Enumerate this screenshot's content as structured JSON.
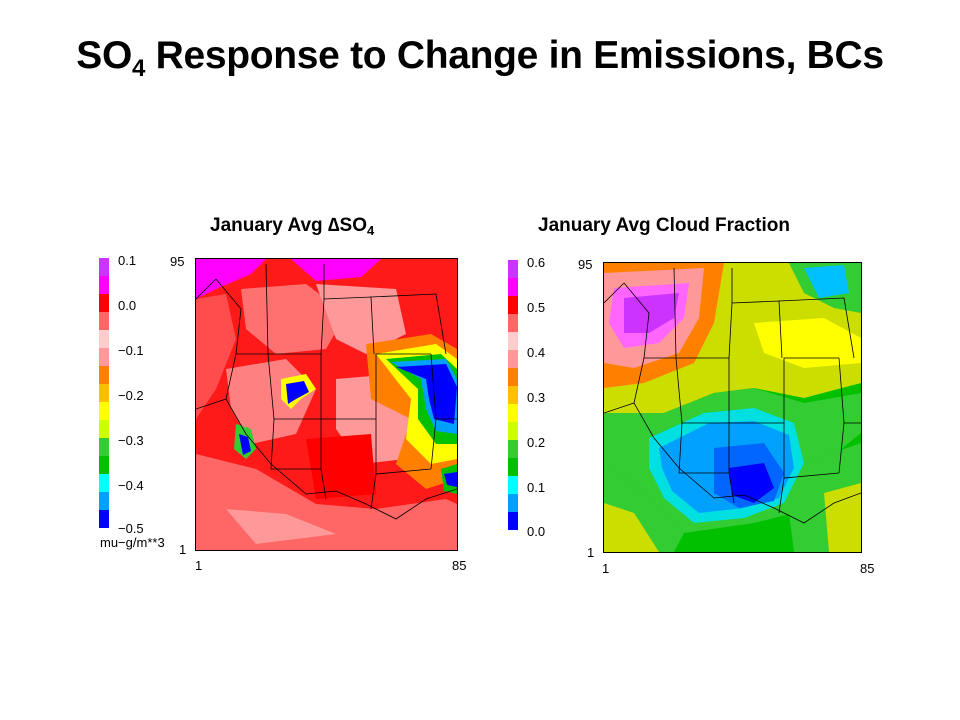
{
  "title": {
    "main": "SO",
    "sub": "4",
    "rest": " Response to Change in Emissions, BCs"
  },
  "chart_data": [
    {
      "type": "heatmap",
      "title_prefix": "January Avg ",
      "title_symbol": "∆SO",
      "title_sub": "4",
      "colorbar": {
        "labels": [
          "0.1",
          "0.0",
          "−0.1",
          "−0.2",
          "−0.3",
          "−0.4",
          "−0.5"
        ],
        "unit": "mu−g/m**3",
        "range": [
          -0.5,
          0.1
        ]
      },
      "x_ticks": [
        "1",
        "85"
      ],
      "y_ticks": [
        "95",
        "1"
      ],
      "xlim": [
        1,
        85
      ],
      "ylim": [
        1,
        95
      ]
    },
    {
      "type": "heatmap",
      "title": "January Avg Cloud Fraction",
      "colorbar": {
        "labels": [
          "0.6",
          "0.5",
          "0.4",
          "0.3",
          "0.2",
          "0.1",
          "0.0"
        ],
        "range": [
          0.0,
          0.6
        ]
      },
      "x_ticks": [
        "1",
        "85"
      ],
      "y_ticks": [
        "95",
        "1"
      ],
      "xlim": [
        1,
        85
      ],
      "ylim": [
        1,
        95
      ]
    }
  ],
  "colors": {
    "scale": [
      "#0000ff",
      "#00a0ff",
      "#00ffff",
      "#00c000",
      "#33cc33",
      "#ccff00",
      "#ffff00",
      "#ffc000",
      "#ff8000",
      "#ff9999",
      "#ffcccc",
      "#ff6666",
      "#ff0000",
      "#ff00ff",
      "#cc33ff"
    ]
  }
}
